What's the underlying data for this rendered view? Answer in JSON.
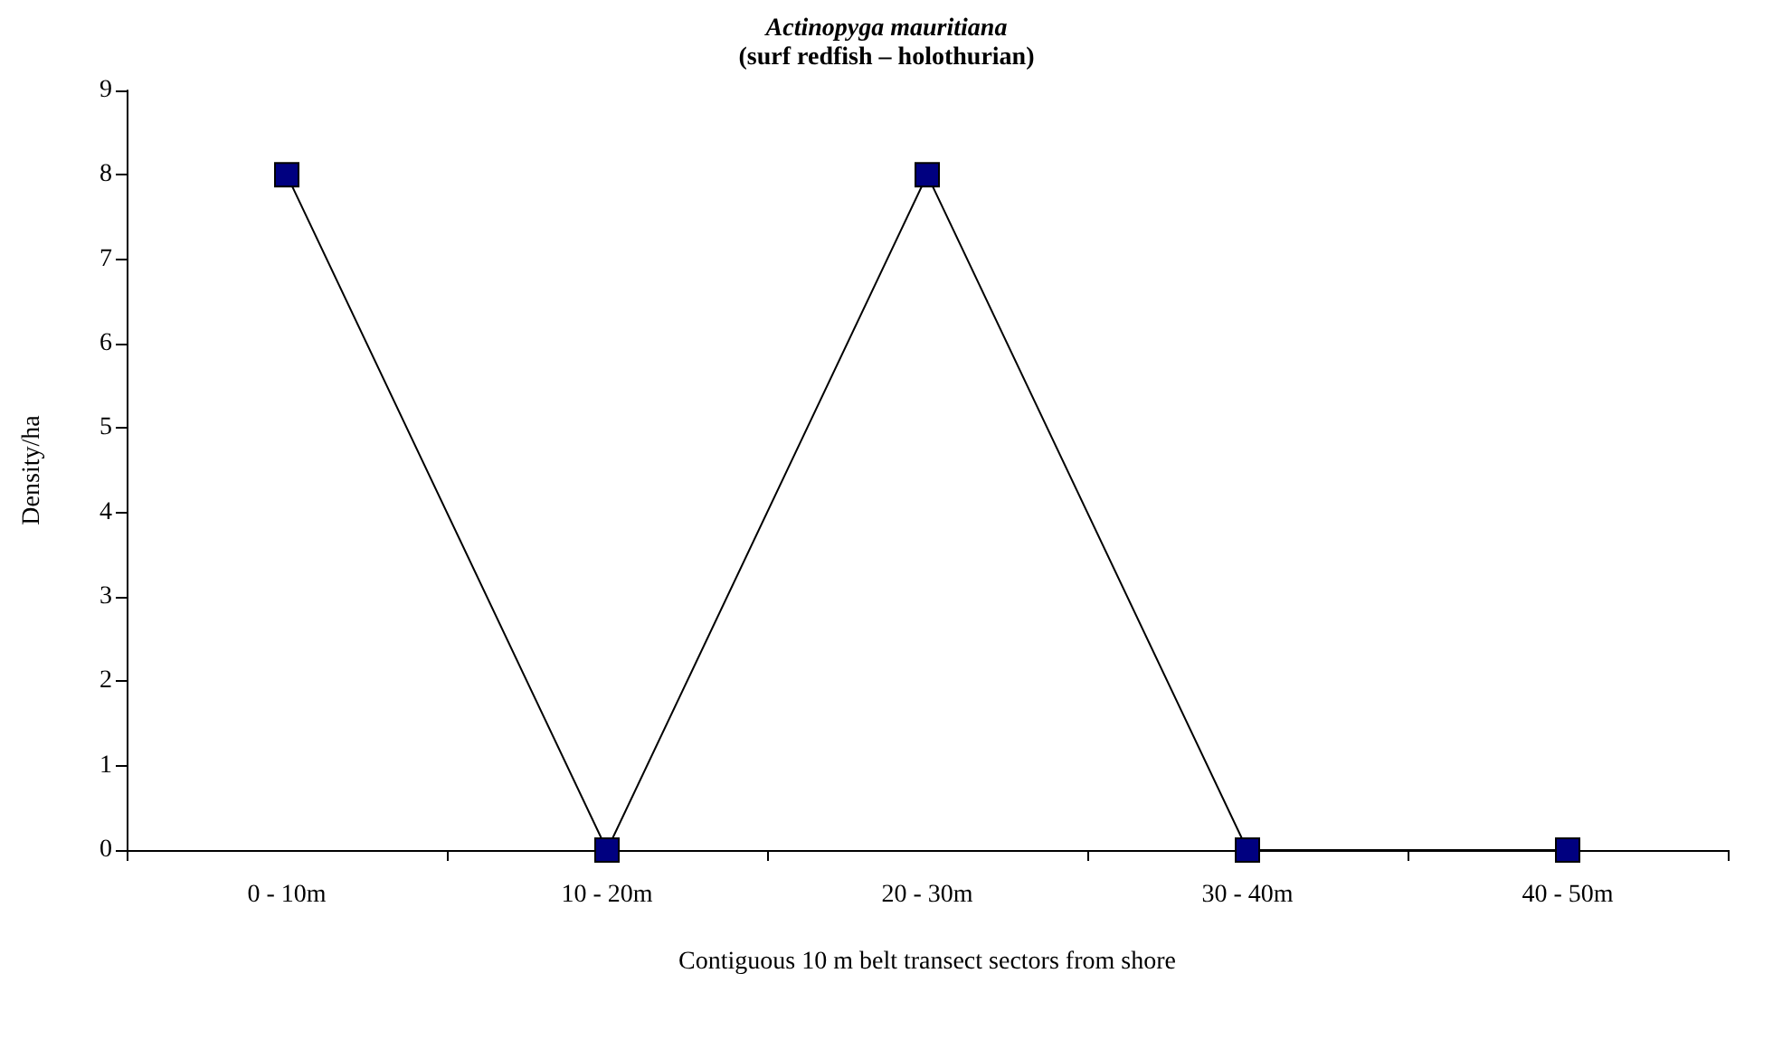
{
  "chart_data": {
    "type": "line",
    "title": "Actinopyga mauritiana",
    "subtitle": "(surf redfish – holothurian)",
    "xlabel": "Contiguous 10 m belt transect sectors from shore",
    "ylabel": "Density/ha",
    "categories": [
      "0 - 10m",
      "10 - 20m",
      "20 - 30m",
      "30 - 40m",
      "40 - 50m"
    ],
    "series": [
      {
        "color": "#000080",
        "values": [
          8,
          0,
          8,
          0,
          0
        ]
      }
    ],
    "ylim": [
      0,
      9
    ],
    "yticks": [
      0,
      1,
      2,
      3,
      4,
      5,
      6,
      7,
      8,
      9
    ],
    "marker": "square",
    "line_style": "solid"
  }
}
